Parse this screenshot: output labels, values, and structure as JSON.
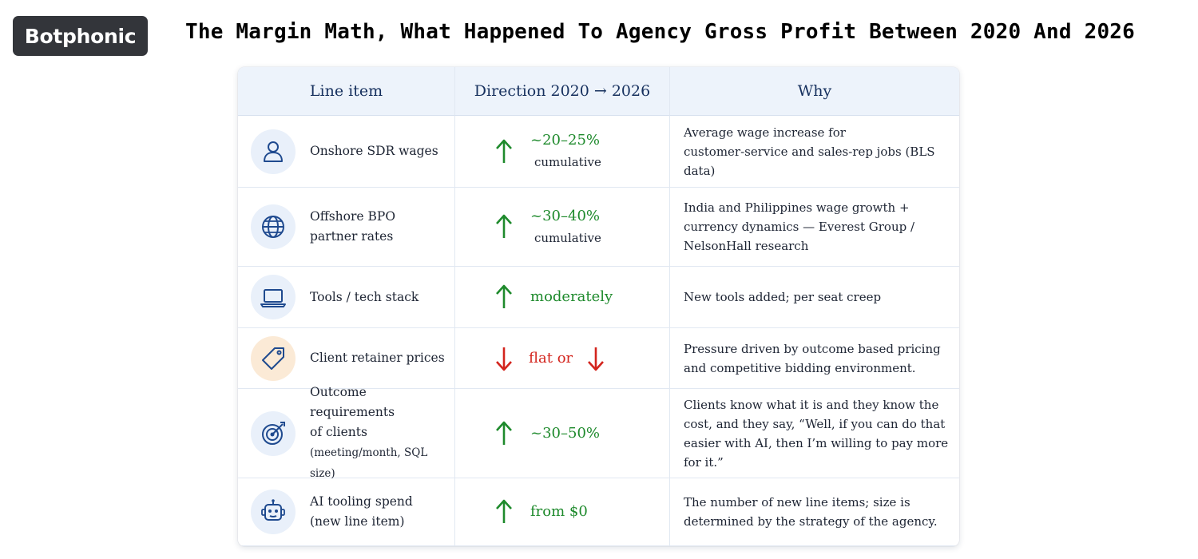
{
  "brand": {
    "name": "Botphonic"
  },
  "title": "The Margin Math, What Happened To Agency Gross Profit Between 2020 And 2026",
  "table": {
    "headers": [
      "Line item",
      "Direction 2020 → 2026",
      "Why"
    ],
    "rows": [
      {
        "icon": "user-icon",
        "item_lines": [
          "Onshore SDR wages"
        ],
        "direction": "up",
        "change": "~20–25%",
        "note": "cumulative",
        "why": "Average wage increase for\ncustomer-service and sales-rep jobs (BLS data)"
      },
      {
        "icon": "globe-icon",
        "item_lines": [
          "Offshore BPO",
          "partner rates"
        ],
        "direction": "up",
        "change": "~30–40%",
        "note": "cumulative",
        "why": "India and Philippines wage growth +\ncurrency dynamics — Everest Group /\nNelsonHall research"
      },
      {
        "icon": "laptop-icon",
        "item_lines": [
          "Tools / tech stack"
        ],
        "direction": "up",
        "change": "moderately",
        "note": "",
        "why": "New tools added; per seat creep"
      },
      {
        "icon": "tag-icon",
        "item_lines": [
          "Client retainer prices"
        ],
        "direction": "down",
        "change": "flat or",
        "note": "",
        "why": "Pressure driven by outcome based pricing\nand competitive bidding environment."
      },
      {
        "icon": "target-icon",
        "item_lines": [
          "Outcome requirements",
          "of clients"
        ],
        "item_small": "(meeting/month, SQL size)",
        "direction": "up",
        "change": "~30–50%",
        "note": "",
        "why": "Clients know what it is and they know the\ncost, and they say, “Well, if you can do that\neasier with AI, then I’m willing to pay more\nfor it.”"
      },
      {
        "icon": "robot-icon",
        "item_lines": [
          "AI tooling spend",
          "(new line item)"
        ],
        "direction": "up",
        "change": "from $0",
        "note": "",
        "why": "The number of new line items; size is\ndetermined by the strategy of the agency."
      }
    ]
  },
  "colors": {
    "up": "#1e8a2c",
    "down": "#d3241d",
    "icon": "#1f4a8f",
    "header_text": "#16305e"
  }
}
